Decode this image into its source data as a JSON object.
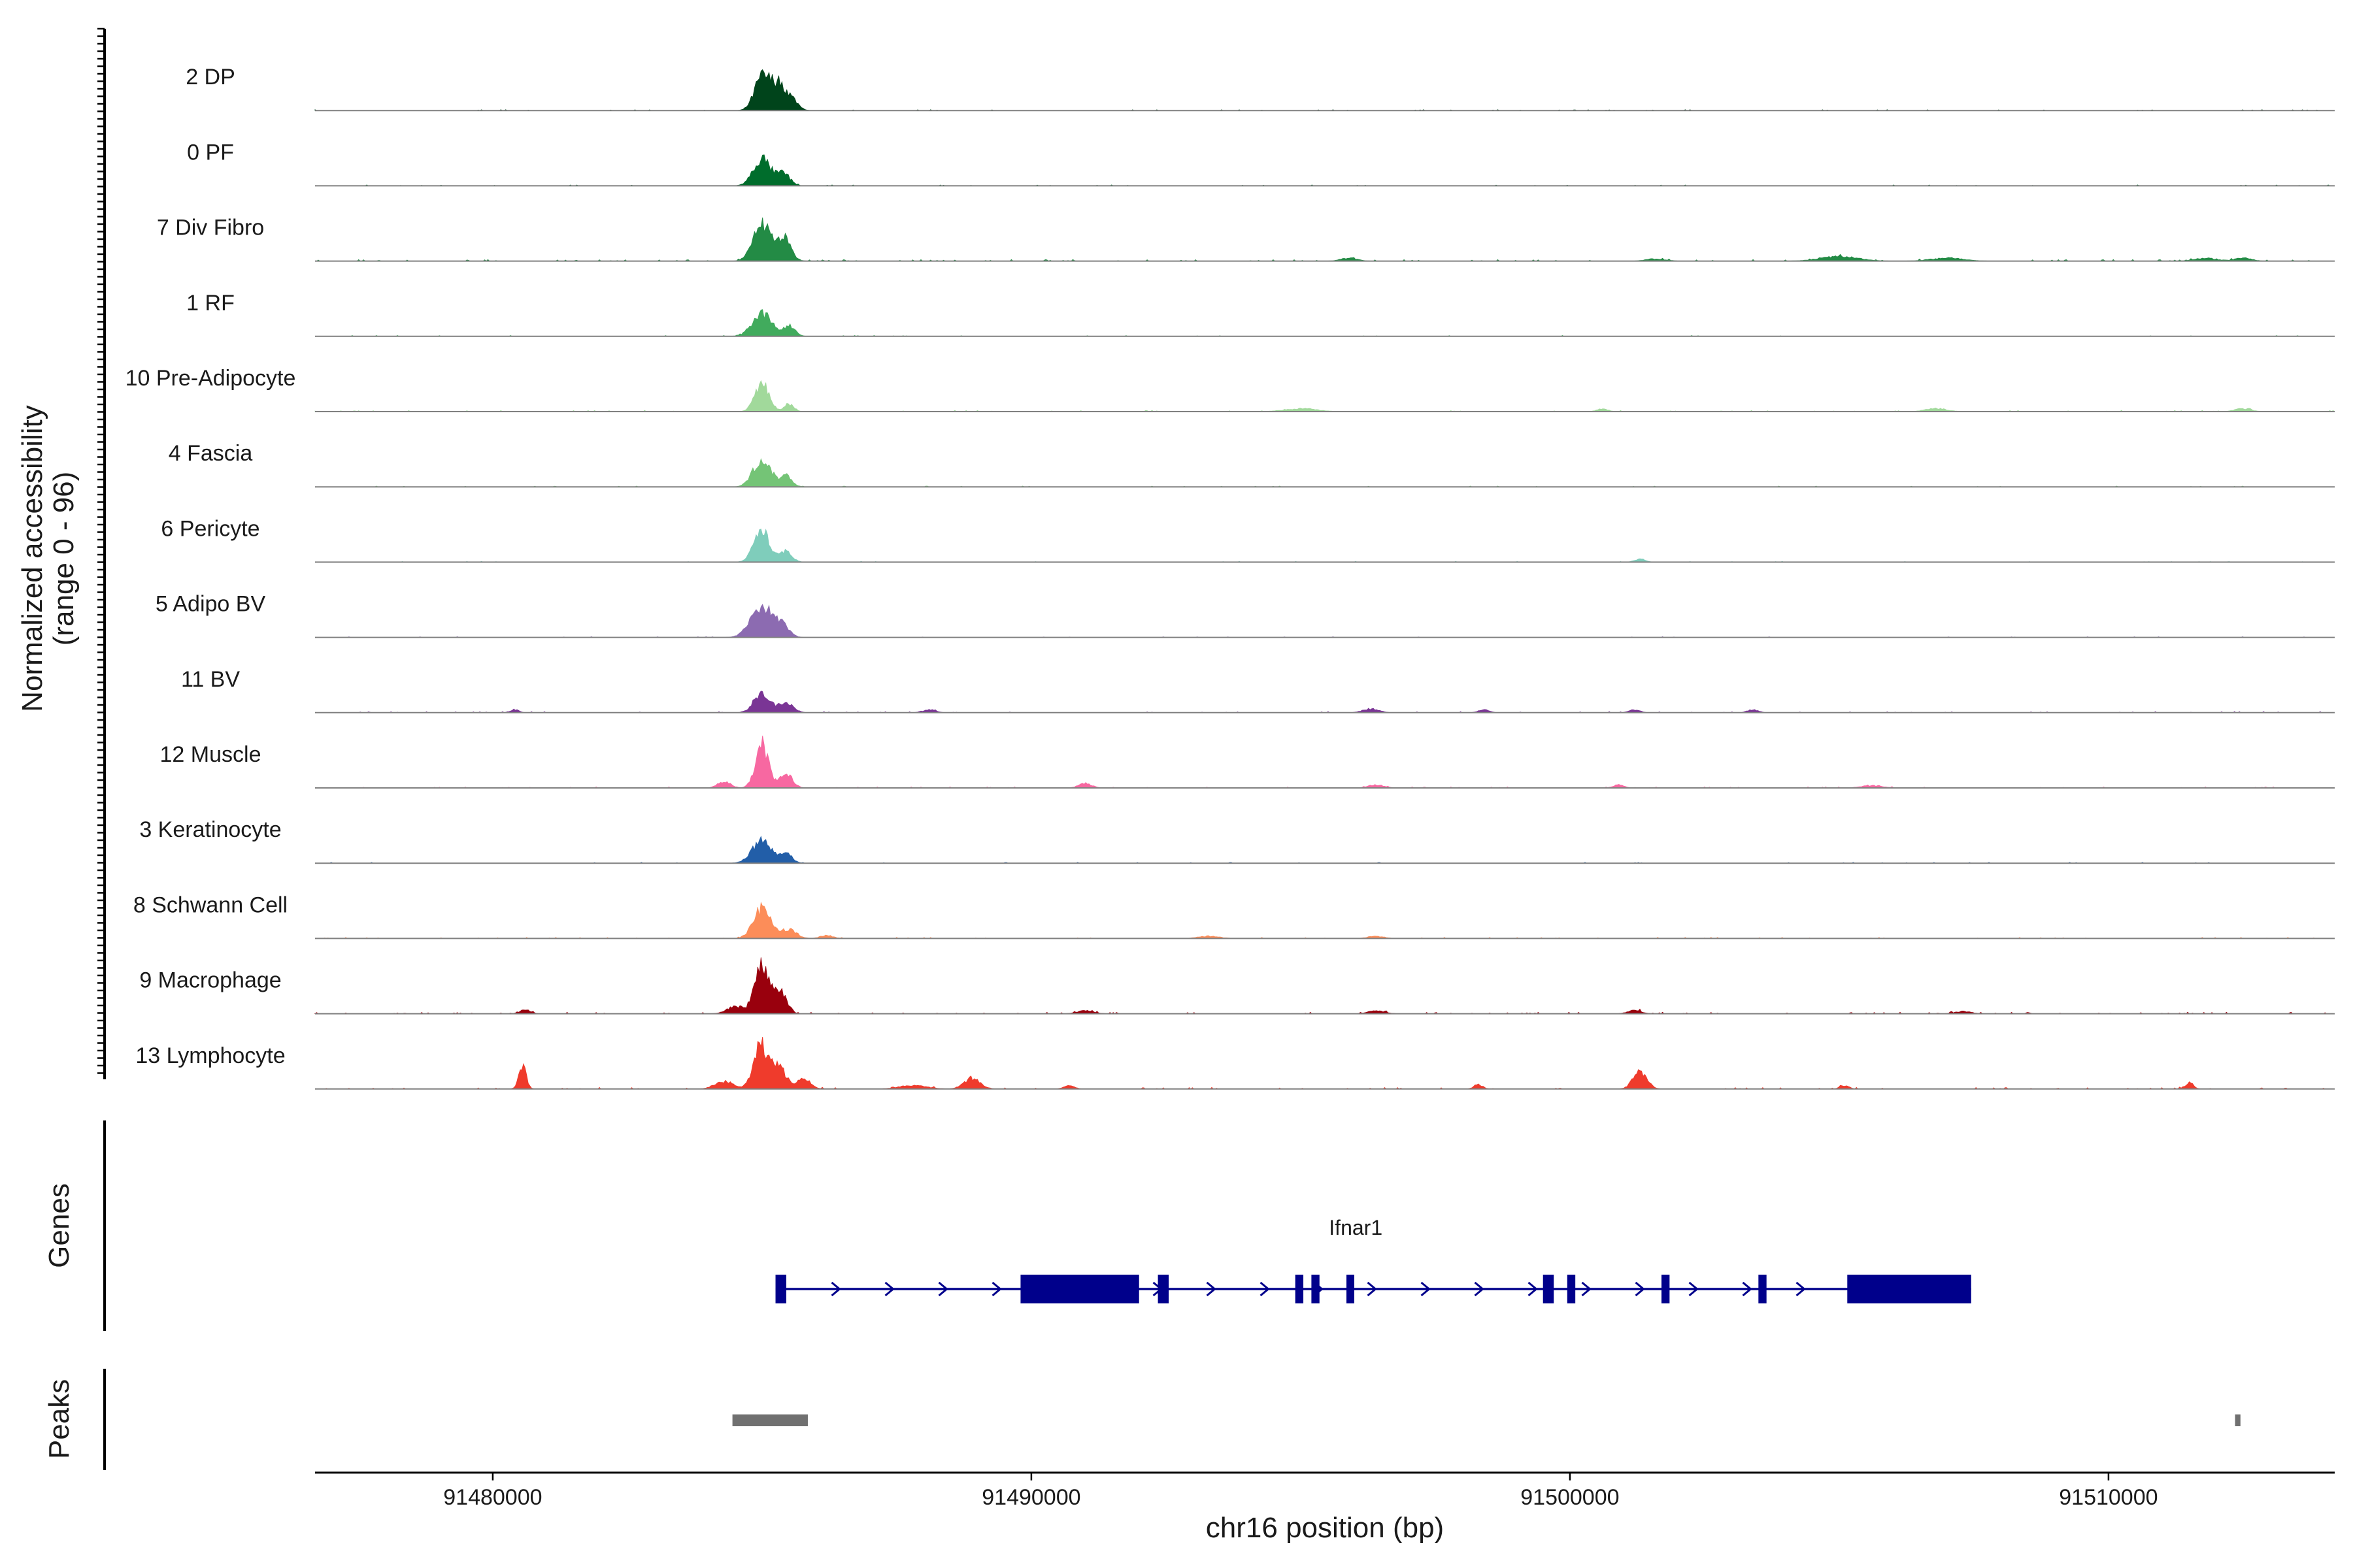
{
  "chart_data": {
    "type": "area",
    "chromosome": "chr16",
    "xlabel": "chr16 position (bp)",
    "xlim": [
      91476700,
      91514200
    ],
    "x_ticks": [
      91480000,
      91490000,
      91500000,
      91510000
    ],
    "x_tick_labels": [
      "91480000",
      "91490000",
      "91500000",
      "91510000"
    ],
    "y_axis_title_line1": "Normalized accessibility",
    "y_axis_title_line2": "(range 0 - 96)",
    "ylim": [
      0,
      96
    ],
    "main_peak": {
      "center": 91485100,
      "height": 58
    },
    "tracks": [
      {
        "name": "2 DP",
        "color": "#00441b",
        "noise": 0.25,
        "peaks": [
          [
            91485000,
            44,
            140
          ],
          [
            91485300,
            34,
            130
          ],
          [
            91485550,
            14,
            120
          ]
        ]
      },
      {
        "name": "0 PF",
        "color": "#006d2c",
        "noise": 0.25,
        "peaks": [
          [
            91485000,
            36,
            160
          ],
          [
            91485400,
            16,
            120
          ]
        ]
      },
      {
        "name": "7 Div Fibro",
        "color": "#238b45",
        "noise": 0.55,
        "peaks": [
          [
            91485000,
            50,
            160
          ],
          [
            91485400,
            30,
            130
          ],
          [
            91495900,
            4,
            150
          ],
          [
            91501600,
            3,
            180
          ],
          [
            91505000,
            6,
            350
          ],
          [
            91507000,
            4,
            300
          ],
          [
            91511800,
            4,
            200
          ],
          [
            91512500,
            4,
            160
          ]
        ]
      },
      {
        "name": "1 RF",
        "color": "#41ab5d",
        "noise": 0.25,
        "peaks": [
          [
            91485000,
            30,
            180
          ],
          [
            91485500,
            14,
            110
          ]
        ]
      },
      {
        "name": "10 Pre-Adipocyte",
        "color": "#a1d99b",
        "noise": 0.4,
        "peaks": [
          [
            91485000,
            38,
            130
          ],
          [
            91485500,
            10,
            90
          ],
          [
            91495000,
            4,
            300
          ],
          [
            91500600,
            4,
            100
          ],
          [
            91506800,
            4,
            200
          ],
          [
            91512500,
            4,
            150
          ]
        ]
      },
      {
        "name": "4 Fascia",
        "color": "#74c476",
        "noise": 0.2,
        "peaks": [
          [
            91485000,
            38,
            160
          ],
          [
            91485450,
            14,
            110
          ]
        ]
      },
      {
        "name": "6 Pericyte",
        "color": "#7fcdbb",
        "noise": 0.2,
        "peaks": [
          [
            91485000,
            40,
            150
          ],
          [
            91485450,
            14,
            110
          ],
          [
            91501300,
            4,
            100
          ]
        ]
      },
      {
        "name": "5 Adipo BV",
        "color": "#8c6bb1",
        "noise": 0.2,
        "peaks": [
          [
            91485000,
            42,
            200
          ],
          [
            91485400,
            14,
            120
          ]
        ]
      },
      {
        "name": "11 BV",
        "color": "#7a3595",
        "noise": 0.35,
        "peaks": [
          [
            91485000,
            26,
            150
          ],
          [
            91485450,
            14,
            130
          ],
          [
            91480400,
            4,
            80
          ],
          [
            91488100,
            4,
            120
          ],
          [
            91496300,
            5,
            150
          ],
          [
            91498400,
            4,
            100
          ],
          [
            91501200,
            4,
            100
          ],
          [
            91503400,
            4,
            100
          ]
        ]
      },
      {
        "name": "12 Muscle",
        "color": "#f768a1",
        "noise": 0.35,
        "peaks": [
          [
            91485000,
            58,
            120
          ],
          [
            91485450,
            18,
            120
          ],
          [
            91484300,
            8,
            120
          ],
          [
            91491000,
            6,
            120
          ],
          [
            91496400,
            4,
            150
          ],
          [
            91500900,
            4,
            100
          ],
          [
            91505600,
            3,
            200
          ]
        ]
      },
      {
        "name": "3 Keratinocyte",
        "color": "#225ea8",
        "noise": 0.2,
        "peaks": [
          [
            91485000,
            30,
            180
          ],
          [
            91485450,
            12,
            110
          ]
        ]
      },
      {
        "name": "8 Schwann Cell",
        "color": "#fc8d59",
        "noise": 0.35,
        "peaks": [
          [
            91485000,
            40,
            160
          ],
          [
            91485500,
            12,
            140
          ],
          [
            91486200,
            4,
            120
          ],
          [
            91493300,
            3,
            200
          ],
          [
            91496400,
            3,
            150
          ]
        ]
      },
      {
        "name": "9 Macrophage",
        "color": "#99000d",
        "noise": 0.55,
        "peaks": [
          [
            91485000,
            70,
            130
          ],
          [
            91485350,
            28,
            110
          ],
          [
            91484500,
            10,
            150
          ],
          [
            91480600,
            5,
            100
          ],
          [
            91491000,
            4,
            150
          ],
          [
            91496400,
            4,
            150
          ],
          [
            91501200,
            5,
            120
          ],
          [
            91507300,
            3,
            150
          ]
        ]
      },
      {
        "name": "13 Lymphocyte",
        "color": "#ef3b2c",
        "noise": 0.6,
        "peaks": [
          [
            91484970,
            58,
            130
          ],
          [
            91485300,
            30,
            130
          ],
          [
            91485750,
            12,
            140
          ],
          [
            91484300,
            10,
            170
          ],
          [
            91480550,
            30,
            70
          ],
          [
            91488900,
            14,
            150
          ],
          [
            91487800,
            5,
            250
          ],
          [
            91490700,
            4,
            100
          ],
          [
            91501300,
            22,
            130
          ],
          [
            91498300,
            6,
            80
          ],
          [
            91511500,
            8,
            80
          ],
          [
            91505100,
            5,
            80
          ]
        ]
      }
    ],
    "genes": [
      {
        "name": "Ifnar1",
        "start": 91485250,
        "end": 91507450,
        "strand": "+",
        "exons": [
          [
            91485250,
            91485450
          ],
          [
            91489800,
            91492000
          ],
          [
            91492350,
            91492550
          ],
          [
            91494900,
            91495050
          ],
          [
            91495200,
            91495350
          ],
          [
            91495850,
            91495980
          ],
          [
            91499500,
            91499700
          ],
          [
            91499950,
            91500100
          ],
          [
            91501700,
            91501850
          ],
          [
            91503500,
            91503650
          ],
          [
            91505150,
            91507450
          ]
        ]
      }
    ],
    "peaks_track": [
      [
        91484450,
        91485850
      ],
      [
        91512350,
        91512450
      ]
    ]
  },
  "panels": {
    "genes_label": "Genes",
    "peaks_label": "Peaks"
  },
  "colors": {
    "gene": "#00008b",
    "peak_bar": "#707070",
    "axis": "#000000",
    "baseline": "#808080"
  }
}
